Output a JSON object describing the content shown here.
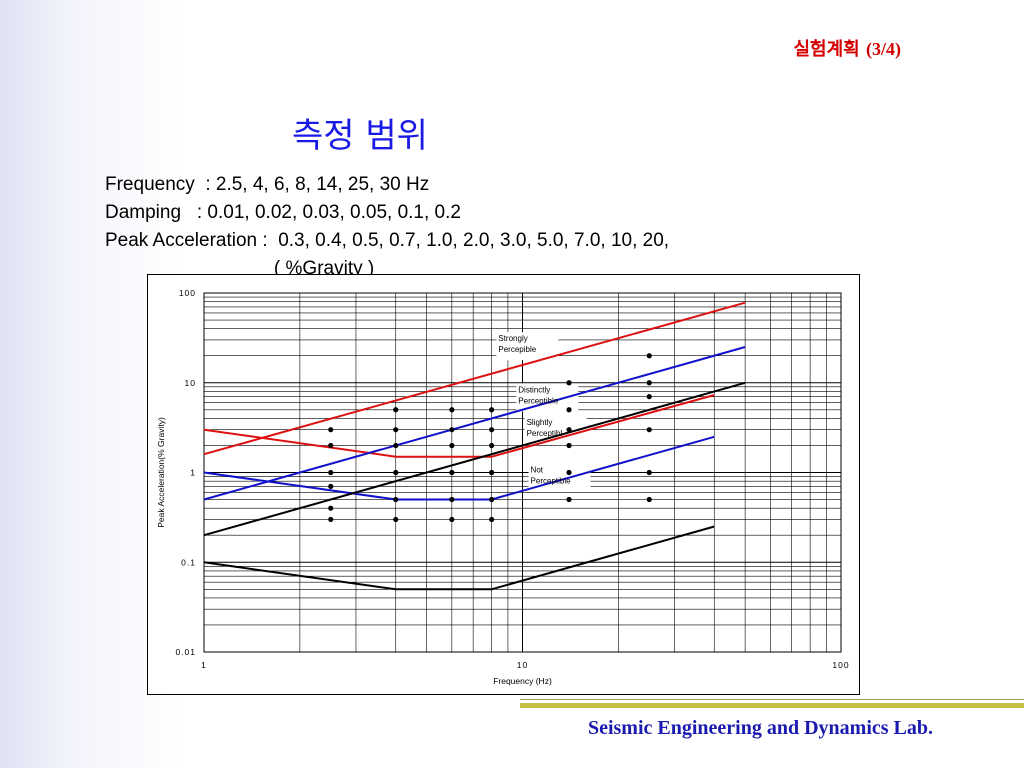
{
  "header": {
    "korean": "실험계획",
    "page": "(3/4)"
  },
  "title": "측정 범위",
  "specs": [
    "Frequency  : 2.5, 4, 6, 8, 14, 25, 30 Hz",
    "Damping   : 0.01, 0.02, 0.03, 0.05, 0.1, 0.2",
    "Peak Acceleration :  0.3, 0.4, 0.5, 0.7, 1.0, 2.0, 3.0, 5.0, 7.0, 10, 20,",
    "                                ( %Gravity )"
  ],
  "footer": "Seismic Engineering and Dynamics Lab.",
  "colors": {
    "red": "#dd1111",
    "blue": "#1111cc",
    "black": "#000000"
  },
  "chart_data": {
    "type": "scatter",
    "xscale": "log",
    "yscale": "log",
    "xlim": [
      1,
      100
    ],
    "ylim": [
      0.01,
      100
    ],
    "xlabel": "Frequency (Hz)",
    "ylabel": "Peak Acceleration(% Gravity)",
    "xticks": [
      "1",
      "10",
      "100"
    ],
    "yticks": [
      "100",
      "10",
      "1",
      "0.1",
      "0.01"
    ],
    "grid": true,
    "annotations": [
      {
        "text": [
          "Strongly",
          "Percepible"
        ],
        "x": 8.4,
        "y": 29
      },
      {
        "text": [
          "Distinctly",
          "Perceptible"
        ],
        "x": 9.7,
        "y": 7.8
      },
      {
        "text": [
          "Slightly",
          "Perceptibl"
        ],
        "x": 10.3,
        "y": 3.4
      },
      {
        "text": [
          "Not",
          "Perceptible"
        ],
        "x": 10.6,
        "y": 1.0
      }
    ],
    "lines": [
      {
        "color": "red",
        "points": [
          [
            1,
            1.6
          ],
          [
            50,
            78
          ]
        ]
      },
      {
        "color": "red",
        "points": [
          [
            1,
            3.0
          ],
          [
            4,
            1.5
          ],
          [
            8,
            1.5
          ],
          [
            40,
            7.3
          ]
        ]
      },
      {
        "color": "blue",
        "points": [
          [
            1,
            0.5
          ],
          [
            50,
            25
          ]
        ]
      },
      {
        "color": "blue",
        "points": [
          [
            1,
            1.0
          ],
          [
            4,
            0.5
          ],
          [
            8,
            0.5
          ],
          [
            40,
            2.5
          ]
        ]
      },
      {
        "color": "black",
        "points": [
          [
            1,
            0.2
          ],
          [
            50,
            10
          ]
        ]
      },
      {
        "color": "black",
        "points": [
          [
            1,
            0.1
          ],
          [
            4,
            0.05
          ],
          [
            8,
            0.05
          ],
          [
            40,
            0.25
          ]
        ]
      }
    ],
    "points": [
      [
        2.5,
        3.0
      ],
      [
        2.5,
        2.0
      ],
      [
        2.5,
        1.0
      ],
      [
        2.5,
        0.7
      ],
      [
        2.5,
        0.4
      ],
      [
        2.5,
        0.3
      ],
      [
        4,
        5.0
      ],
      [
        4,
        3.0
      ],
      [
        4,
        2.0
      ],
      [
        4,
        1.0
      ],
      [
        4,
        0.5
      ],
      [
        4,
        0.3
      ],
      [
        6,
        5.0
      ],
      [
        6,
        3.0
      ],
      [
        6,
        2.0
      ],
      [
        6,
        1.0
      ],
      [
        6,
        0.5
      ],
      [
        6,
        0.3
      ],
      [
        8,
        5.0
      ],
      [
        8,
        3.0
      ],
      [
        8,
        2.0
      ],
      [
        8,
        1.0
      ],
      [
        8,
        0.5
      ],
      [
        8,
        0.3
      ],
      [
        14,
        10
      ],
      [
        14,
        5.0
      ],
      [
        14,
        3.0
      ],
      [
        14,
        2.0
      ],
      [
        14,
        1.0
      ],
      [
        14,
        0.5
      ],
      [
        25,
        20
      ],
      [
        25,
        10
      ],
      [
        25,
        7.0
      ],
      [
        25,
        3.0
      ],
      [
        25,
        1.0
      ],
      [
        25,
        0.5
      ]
    ]
  }
}
